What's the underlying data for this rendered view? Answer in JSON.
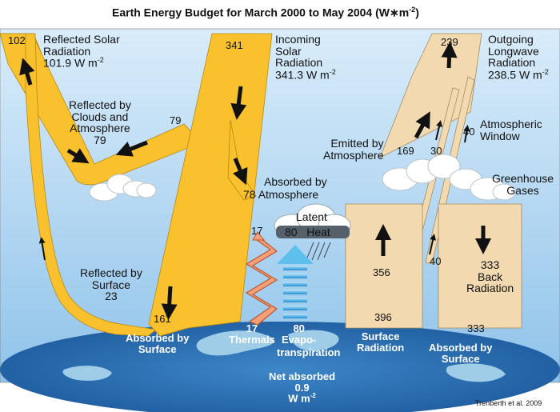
{
  "title": "Earth Energy Budget for March 2000 to May 2004 (W",
  "title_unit": "m",
  "title_exp": "-2",
  "title_close": ")",
  "credit": "Trenberth et al. 2009",
  "unit": {
    "w": "W m",
    "exp": "-2"
  },
  "reflected_solar": {
    "value": "102",
    "l1": "Reflected Solar",
    "l2": "Radiation",
    "amount": "101.9"
  },
  "incoming_solar": {
    "value": "341",
    "l1": "Incoming",
    "l2": "Solar",
    "l3": "Radiation",
    "amount": "341.3"
  },
  "outgoing_longwave": {
    "value": "239",
    "l1": "Outgoing",
    "l2": "Longwave",
    "l3": "Radiation",
    "amount": "238.5"
  },
  "reflected_clouds": {
    "l1": "Reflected by",
    "l2": "Clouds and",
    "l3": "Atmosphere",
    "value": "79",
    "value2": "79"
  },
  "absorbed_atmosphere": {
    "l1": "Absorbed by",
    "l2": "Atmosphere",
    "value": "78"
  },
  "emitted_atmosphere": {
    "l1": "Emitted by",
    "l2": "Atmosphere",
    "value": "169"
  },
  "window": {
    "value_a": "30",
    "value_b": "40",
    "l1": "Atmospheric",
    "l2": "Window",
    "value_c": "40"
  },
  "greenhouse": {
    "l1": "Greenhouse",
    "l2": "Gases"
  },
  "latent": {
    "value": "80",
    "l1": "Latent",
    "l2": "Heat"
  },
  "thermals": {
    "top": "17",
    "value": "17",
    "label": "Thermals"
  },
  "evapo": {
    "value": "80",
    "l1": "Evapo-",
    "l2": "transpiration"
  },
  "surface_rad": {
    "mid": "356",
    "value": "396",
    "l1": "Surface",
    "l2": "Radiation"
  },
  "back_rad": {
    "value": "333",
    "l1": "Back",
    "l2": "Radiation"
  },
  "absorbed_surface_right": {
    "value": "333",
    "l1": "Absorbed by",
    "l2": "Surface"
  },
  "absorbed_surface_left": {
    "value": "161",
    "l1": "Absorbed by",
    "l2": "Surface"
  },
  "reflected_surface": {
    "l1": "Reflected by",
    "l2": "Surface",
    "value": "23"
  },
  "net_absorbed": {
    "l1": "Net absorbed",
    "value": "0.9"
  },
  "colors": {
    "solar": "#f8c12d",
    "longwave": "#f2d9b0",
    "sky": "#bcdcf4",
    "earth": "#2a6fb3",
    "land": "#9fcde8"
  }
}
